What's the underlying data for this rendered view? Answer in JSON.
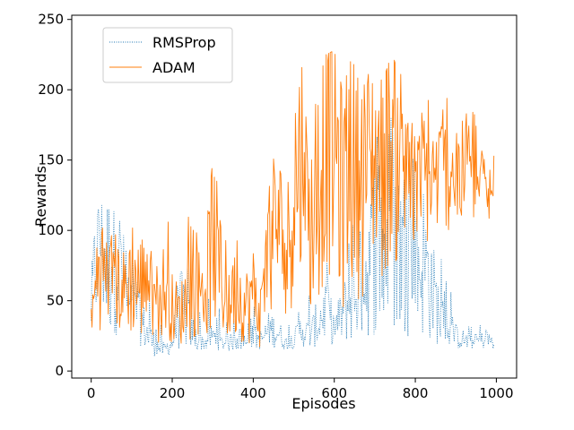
{
  "chart_data": {
    "type": "line",
    "title": "",
    "xlabel": "Episodes",
    "ylabel": "Rewards",
    "xlim": [
      -48,
      1050
    ],
    "ylim": [
      -5,
      253
    ],
    "xticks": [
      0,
      200,
      400,
      600,
      800,
      1000
    ],
    "yticks": [
      0,
      50,
      100,
      150,
      200,
      250
    ],
    "grid": false,
    "legend_position": "top-left",
    "series": [
      {
        "name": "RMSProp",
        "color": "#1f77b4",
        "style": "dotted",
        "x": [
          0,
          20,
          40,
          60,
          80,
          100,
          120,
          140,
          160,
          180,
          200,
          220,
          240,
          260,
          280,
          300,
          320,
          340,
          360,
          380,
          400,
          420,
          440,
          460,
          480,
          500,
          520,
          540,
          560,
          580,
          600,
          620,
          640,
          660,
          680,
          700,
          720,
          740,
          760,
          780,
          800,
          820,
          840,
          860,
          880,
          900,
          920,
          940,
          960,
          980,
          995
        ],
        "values": [
          45,
          105,
          78,
          95,
          60,
          42,
          38,
          25,
          18,
          15,
          20,
          45,
          35,
          22,
          20,
          25,
          20,
          20,
          22,
          18,
          25,
          22,
          30,
          28,
          20,
          22,
          30,
          25,
          35,
          45,
          30,
          40,
          50,
          60,
          70,
          90,
          80,
          110,
          75,
          95,
          70,
          80,
          60,
          40,
          28,
          25,
          22,
          20,
          22,
          22,
          20
        ],
        "y_min": [
          22,
          35,
          20,
          25,
          20,
          20,
          18,
          12,
          10,
          10,
          12,
          15,
          15,
          14,
          15,
          15,
          15,
          14,
          15,
          14,
          16,
          15,
          17,
          16,
          15,
          16,
          17,
          16,
          17,
          20,
          18,
          19,
          20,
          22,
          22,
          25,
          22,
          25,
          22,
          25,
          22,
          22,
          20,
          18,
          18,
          16,
          15,
          15,
          16,
          16,
          15
        ],
        "y_max": [
          80,
          119,
          115,
          113,
          100,
          90,
          75,
          65,
          40,
          30,
          45,
          95,
          80,
          55,
          48,
          55,
          42,
          35,
          40,
          30,
          60,
          45,
          55,
          60,
          40,
          35,
          50,
          60,
          70,
          100,
          80,
          95,
          110,
          135,
          145,
          185,
          165,
          185,
          150,
          180,
          160,
          160,
          150,
          90,
          70,
          40,
          35,
          32,
          35,
          30,
          28
        ]
      },
      {
        "name": "ADAM",
        "color": "#ff7f0e",
        "style": "solid",
        "x": [
          0,
          20,
          40,
          60,
          80,
          100,
          120,
          140,
          160,
          180,
          200,
          220,
          240,
          260,
          280,
          300,
          320,
          340,
          360,
          380,
          400,
          420,
          440,
          460,
          480,
          500,
          520,
          540,
          560,
          580,
          600,
          620,
          640,
          660,
          680,
          700,
          720,
          740,
          760,
          780,
          800,
          820,
          840,
          860,
          880,
          900,
          920,
          940,
          960,
          980,
          995
        ],
        "values": [
          35,
          80,
          60,
          65,
          55,
          70,
          60,
          65,
          40,
          60,
          45,
          40,
          55,
          60,
          55,
          100,
          65,
          45,
          60,
          45,
          55,
          40,
          90,
          110,
          70,
          135,
          150,
          100,
          130,
          180,
          170,
          120,
          165,
          130,
          145,
          155,
          145,
          165,
          155,
          140,
          120,
          140,
          135,
          140,
          145,
          130,
          140,
          135,
          130,
          125,
          120
        ],
        "y_min": [
          25,
          30,
          20,
          30,
          22,
          25,
          20,
          25,
          18,
          25,
          20,
          18,
          20,
          25,
          20,
          30,
          25,
          20,
          25,
          18,
          20,
          15,
          35,
          40,
          30,
          50,
          60,
          40,
          45,
          70,
          60,
          40,
          60,
          50,
          55,
          80,
          60,
          80,
          70,
          80,
          70,
          85,
          90,
          100,
          100,
          90,
          100,
          105,
          100,
          95,
          105
        ],
        "y_max": [
          60,
          103,
          100,
          97,
          92,
          108,
          110,
          95,
          82,
          108,
          110,
          82,
          118,
          100,
          90,
          150,
          120,
          95,
          105,
          90,
          110,
          70,
          155,
          165,
          135,
          215,
          241,
          180,
          205,
          225,
          228,
          200,
          220,
          215,
          210,
          215,
          205,
          225,
          215,
          195,
          200,
          210,
          200,
          190,
          200,
          180,
          200,
          190,
          180,
          185,
          160
        ]
      }
    ]
  }
}
